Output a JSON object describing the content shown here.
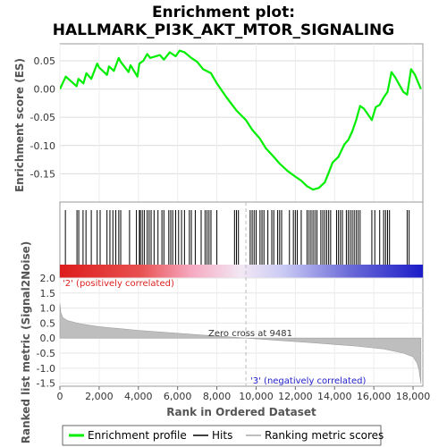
{
  "title_line1": "Enrichment plot:",
  "title_line2": "HALLMARK_PI3K_AKT_MTOR_SIGNALING",
  "colors": {
    "es_line": "#00ee00",
    "hits": "#000000",
    "metric_fill": "#bebebe",
    "pos_label": "#dd2222",
    "neg_label": "#2222cc",
    "zero_line": "#bbbbbb"
  },
  "legend": {
    "enrichment_profile": "Enrichment profile",
    "hits": "Hits",
    "ranking_metric": "Ranking metric scores"
  },
  "chart_data": [
    {
      "type": "line",
      "name": "enrichment-score-panel",
      "ylabel": "Enrichment score (ES)",
      "ylim": [
        -0.2,
        0.08
      ],
      "xlim": [
        0,
        18500
      ],
      "yticks": [
        "0.05",
        "0.00",
        "-0.05",
        "-0.10",
        "-0.15"
      ],
      "ytick_values": [
        0.05,
        0.0,
        -0.05,
        -0.1,
        -0.15
      ],
      "grid": true,
      "series": [
        {
          "name": "Enrichment profile",
          "x": [
            0,
            300,
            850,
            950,
            1200,
            1350,
            1600,
            1900,
            2000,
            2400,
            2500,
            2750,
            3000,
            3100,
            3500,
            3600,
            3950,
            4050,
            4250,
            4450,
            4600,
            5100,
            5300,
            5600,
            5900,
            6100,
            6350,
            6700,
            7000,
            7300,
            7700,
            8000,
            8500,
            9000,
            9481,
            9800,
            10200,
            10500,
            10900,
            11200,
            11600,
            12000,
            12300,
            12600,
            12900,
            13200,
            13500,
            13700,
            13900,
            14200,
            14500,
            14700,
            14900,
            15100,
            15300,
            15500,
            15700,
            15900,
            16100,
            16300,
            16500,
            16700,
            16900,
            17100,
            17500,
            17700,
            17900,
            18100,
            18400
          ],
          "values": [
            0.0,
            0.022,
            0.005,
            0.018,
            0.01,
            0.028,
            0.018,
            0.045,
            0.038,
            0.025,
            0.04,
            0.032,
            0.055,
            0.048,
            0.03,
            0.042,
            0.022,
            0.045,
            0.05,
            0.062,
            0.055,
            0.06,
            0.052,
            0.065,
            0.058,
            0.068,
            0.065,
            0.055,
            0.048,
            0.035,
            0.028,
            0.01,
            -0.015,
            -0.038,
            -0.055,
            -0.072,
            -0.088,
            -0.105,
            -0.12,
            -0.132,
            -0.145,
            -0.155,
            -0.162,
            -0.172,
            -0.178,
            -0.175,
            -0.165,
            -0.148,
            -0.13,
            -0.12,
            -0.098,
            -0.09,
            -0.075,
            -0.055,
            -0.03,
            -0.035,
            -0.045,
            -0.055,
            -0.032,
            -0.028,
            -0.015,
            -0.005,
            0.03,
            0.02,
            -0.005,
            -0.01,
            0.035,
            0.025,
            0.0
          ]
        }
      ]
    },
    {
      "type": "bar",
      "name": "hits-panel",
      "series": [
        {
          "name": "Hits",
          "x": [
            280,
            870,
            960,
            1180,
            1330,
            1600,
            1900,
            2050,
            2400,
            2550,
            2700,
            2850,
            3000,
            3100,
            3550,
            3900,
            4050,
            4100,
            4200,
            4300,
            4450,
            4550,
            4650,
            4800,
            5000,
            5200,
            5300,
            5550,
            5650,
            5750,
            5900,
            6050,
            6200,
            6350,
            6600,
            6700,
            6900,
            7200,
            7400,
            7500,
            7600,
            7700,
            8000,
            8900,
            9000,
            9100,
            9700,
            9800,
            9900,
            10000,
            10200,
            10300,
            10400,
            10600,
            10800,
            10900,
            11100,
            11200,
            11300,
            11700,
            11900,
            12000,
            12100,
            12300,
            12600,
            12700,
            12800,
            12900,
            13000,
            13100,
            13300,
            13400,
            13500,
            13600,
            13700,
            13800,
            14100,
            14200,
            14300,
            14400,
            14600,
            14700,
            14800,
            14900,
            15000,
            15100,
            15200,
            15300,
            15900,
            16050,
            16300,
            16500,
            16600,
            16700,
            16800,
            17700,
            17800
          ]
        }
      ]
    },
    {
      "type": "area",
      "name": "ranking-metric-panel",
      "xlabel": "Rank in Ordered Dataset",
      "ylabel": "Ranked list metric (Signal2Noise)",
      "ylim": [
        -1.6,
        2.0
      ],
      "xlim": [
        0,
        18500
      ],
      "yticks": [
        "2.0",
        "1.5",
        "1.0",
        "0.5",
        "0.0",
        "-0.5",
        "-1.0",
        "-1.5"
      ],
      "ytick_values": [
        2.0,
        1.5,
        1.0,
        0.5,
        0.0,
        -0.5,
        -1.0,
        -1.5
      ],
      "xticks": [
        "0",
        "2,000",
        "4,000",
        "6,000",
        "8,000",
        "10,000",
        "12,000",
        "14,000",
        "16,000",
        "18,000"
      ],
      "xtick_values": [
        0,
        2000,
        4000,
        6000,
        8000,
        10000,
        12000,
        14000,
        16000,
        18000
      ],
      "series": [
        {
          "name": "Ranking metric scores",
          "x": [
            0,
            50,
            150,
            400,
            1000,
            2000,
            4000,
            6000,
            8000,
            9481,
            11000,
            13000,
            15000,
            16500,
            17500,
            18000,
            18200,
            18300,
            18400
          ],
          "values": [
            1.15,
            0.85,
            0.68,
            0.58,
            0.48,
            0.38,
            0.26,
            0.16,
            0.07,
            0.0,
            -0.07,
            -0.16,
            -0.26,
            -0.36,
            -0.5,
            -0.62,
            -0.82,
            -1.05,
            -1.5
          ]
        }
      ],
      "annotations": {
        "pos_label": "'2' (positively correlated)",
        "neg_label": "'3' (negatively correlated)",
        "zero_cross": "Zero cross at 9481",
        "zero_cross_rank": 9481
      }
    }
  ]
}
